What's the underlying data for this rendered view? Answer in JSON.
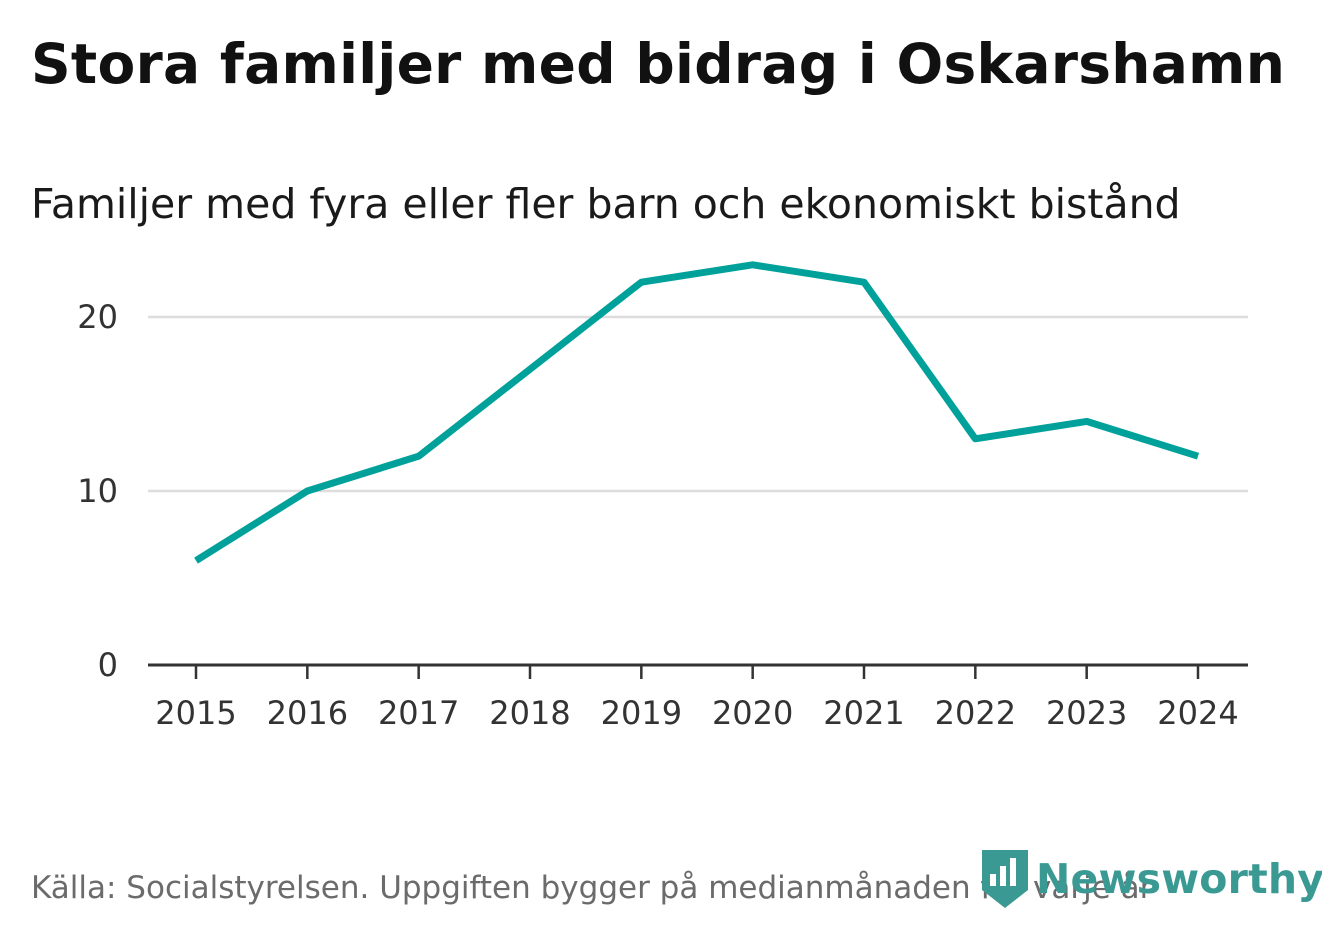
{
  "chart_data": {
    "type": "line",
    "title": "Stora familjer med bidrag i Oskarshamn",
    "subtitle": "Familjer med fyra eller fler barn och ekonomiskt bistånd",
    "x": [
      "2015",
      "2016",
      "2017",
      "2018",
      "2019",
      "2020",
      "2021",
      "2022",
      "2023",
      "2024"
    ],
    "series": [
      {
        "name": "Familjer",
        "values": [
          6,
          10,
          12,
          17,
          22,
          23,
          22,
          13,
          14,
          12
        ],
        "color": "#00a19a"
      }
    ],
    "yticks": [
      "0",
      "10",
      "20"
    ],
    "ylim": [
      0,
      25
    ],
    "grid": true,
    "xlabel": "",
    "ylabel": ""
  },
  "source": "Källa: Socialstyrelsen. Uppgiften bygger på medianmånaden för varje år",
  "brand": {
    "name": "Newsworthy",
    "icon": "newsworthy-logo-icon",
    "color": "#3a9a93"
  },
  "colors": {
    "grid": "#dddddd",
    "axis": "#333333",
    "line": "#00a19a"
  }
}
